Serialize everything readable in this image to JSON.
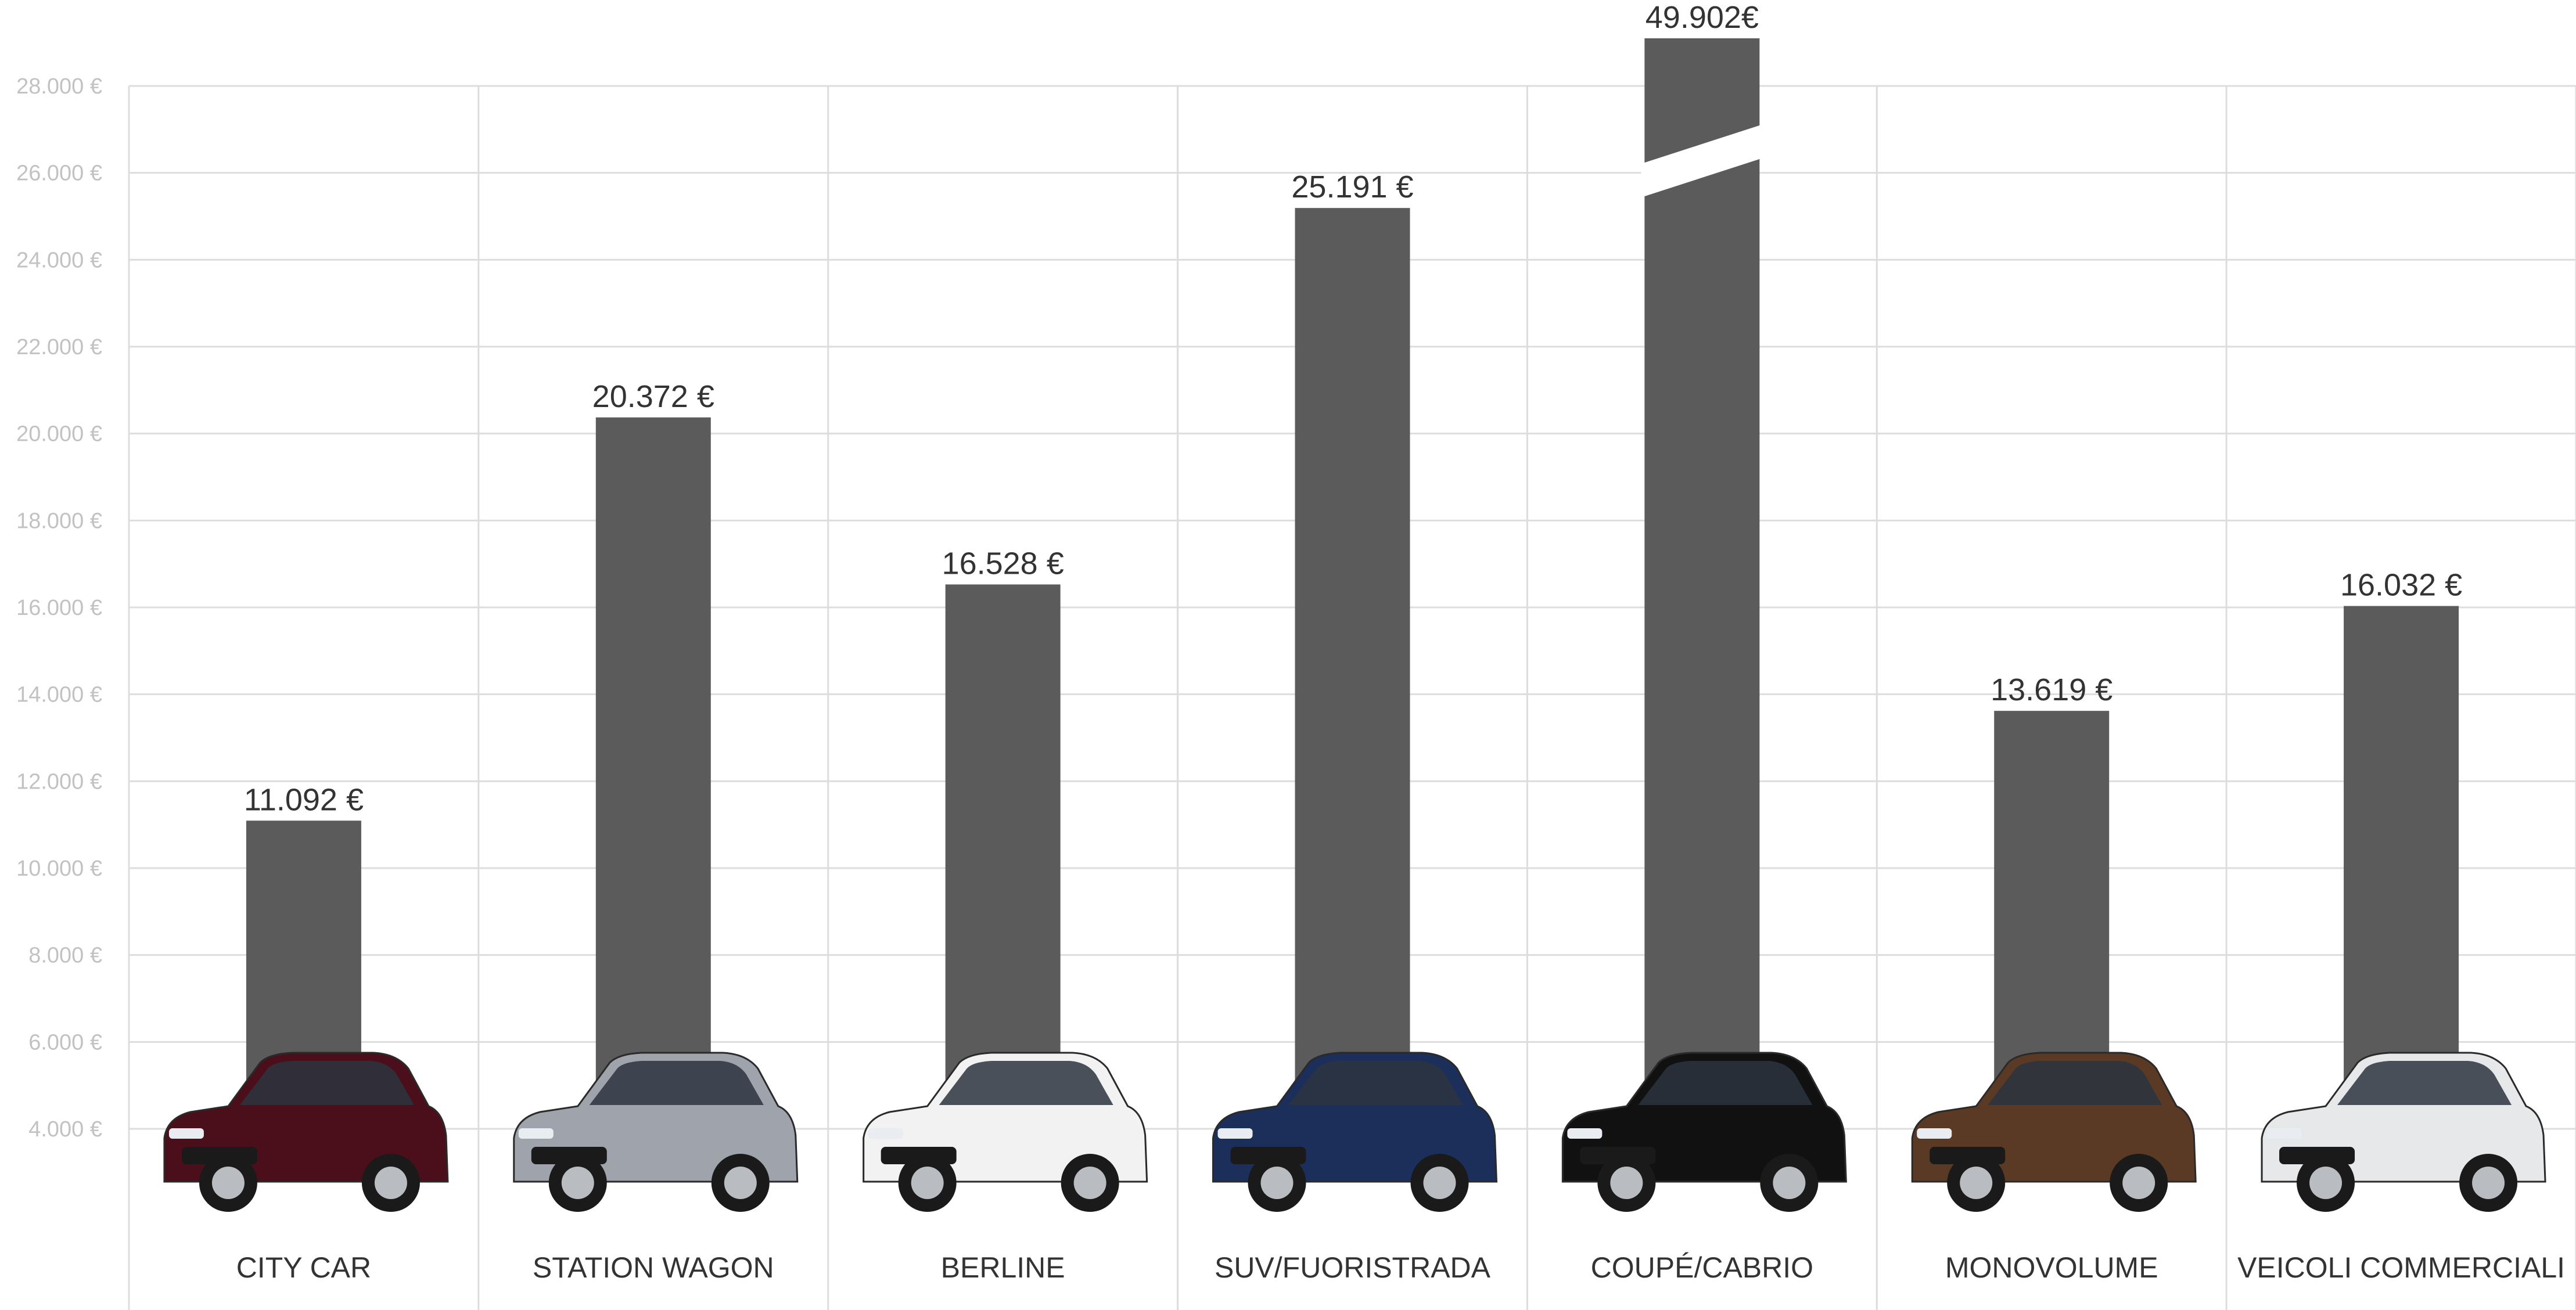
{
  "chart_data": {
    "type": "bar",
    "title": "",
    "xlabel": "",
    "ylabel": "",
    "ylim": [
      4000,
      28000
    ],
    "yticks": [
      "4.000 €",
      "6.000 €",
      "8.000 €",
      "10.000 €",
      "12.000 €",
      "14.000 €",
      "16.000 €",
      "18.000 €",
      "20.000 €",
      "22.000 €",
      "24.000 €",
      "26.000 €",
      "28.000 €"
    ],
    "ytick_values": [
      4000,
      6000,
      8000,
      10000,
      12000,
      14000,
      16000,
      18000,
      20000,
      22000,
      24000,
      26000,
      28000
    ],
    "grid": true,
    "legend": "none",
    "categories": [
      "CITY CAR",
      "STATION WAGON",
      "BERLINE",
      "SUV/FUORISTRADA",
      "COUPÉ/CABRIO",
      "MONOVOLUME",
      "VEICOLI COMMERCIALI"
    ],
    "values": [
      11092,
      20372,
      16528,
      25191,
      49902,
      13619,
      16032
    ],
    "value_labels": [
      "11.092 €",
      "20.372 €",
      "16.528 €",
      "25.191 €",
      "49.902€",
      "13.619 €",
      "16.032 €"
    ],
    "axis_break_category": "COUPÉ/CABRIO",
    "car_images": [
      {
        "category": "CITY CAR",
        "color": "#4a0f1a"
      },
      {
        "category": "STATION WAGON",
        "color": "#9fa3ab"
      },
      {
        "category": "BERLINE",
        "color": "#f2f2f2"
      },
      {
        "category": "SUV/FUORISTRADA",
        "color": "#1c2f5a"
      },
      {
        "category": "COUPÉ/CABRIO",
        "color": "#111111"
      },
      {
        "category": "MONOVOLUME",
        "color": "#5a3a24"
      },
      {
        "category": "VEICOLI COMMERCIALI",
        "color": "#e6e8ea"
      }
    ],
    "colors": {
      "bar": "#5b5b5b",
      "grid": "#dddddd",
      "tick_text": "#c2c2c2",
      "label_text": "#333333"
    }
  }
}
